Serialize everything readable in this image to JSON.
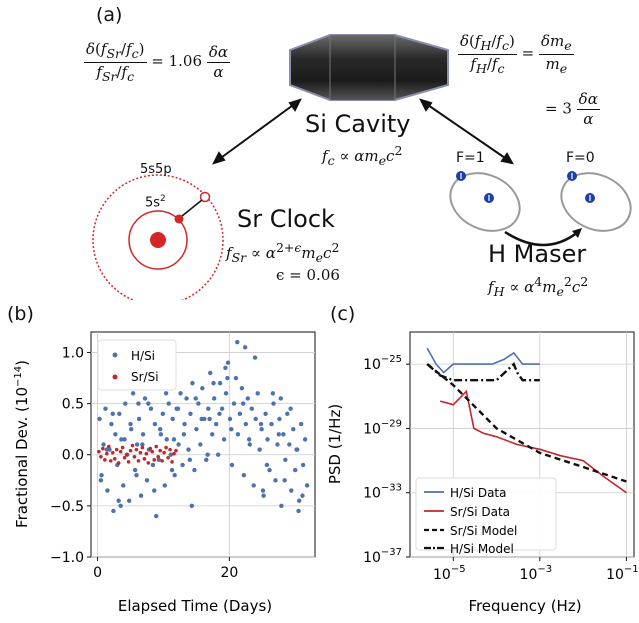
{
  "panels": {
    "a": "(a)",
    "b": "(b)",
    "c": "(c)"
  },
  "schematic": {
    "cavity_label": "Si Cavity",
    "clock_label": "Sr Clock",
    "maser_label": "H Maser",
    "orbital_outer": "5s5p",
    "orbital_inner": "5s",
    "orbital_inner_sup": "2",
    "hyperfine_left": "F=1",
    "hyperfine_right": "F=0",
    "eq_sr_coef": "= 1.06",
    "eq_h_mid": "=",
    "eq_h_coef": "= 3",
    "epsilon_value": "ϵ = 0.06",
    "colors": {
      "clock_red": "#d62728",
      "atom_blue": "#1f3fa8",
      "cavity": "#2b2b2b"
    }
  },
  "chart_data": [
    {
      "type": "scatter",
      "xlabel": "Elapsed Time (Days)",
      "ylabel": "Fractional Dev. (10",
      "ylabel_sup": "−14",
      "ylabel_end": ")",
      "xlim": [
        -1,
        33
      ],
      "ylim": [
        -1.0,
        1.2
      ],
      "xticks": [
        "0",
        "20"
      ],
      "yticks": [
        "1.0",
        "0.5",
        "0.0",
        "−0.5",
        "−1.0"
      ],
      "ytick_values": [
        1.0,
        0.5,
        0.0,
        -0.5,
        -1.0
      ],
      "xtick_values": [
        0,
        20
      ],
      "grid": true,
      "legend": "top-left",
      "series": [
        {
          "name": "H/Si",
          "color": "#4c72b0",
          "x": [
            0.3,
            0.6,
            0.9,
            1.2,
            1.5,
            1.8,
            2.1,
            2.4,
            2.7,
            3.0,
            3.3,
            3.6,
            3.9,
            4.2,
            4.5,
            4.8,
            5.1,
            5.4,
            5.7,
            6.0,
            6.3,
            6.6,
            6.9,
            7.2,
            7.5,
            7.8,
            8.1,
            8.4,
            8.7,
            9.0,
            9.3,
            9.6,
            9.9,
            10.2,
            10.5,
            10.8,
            11.1,
            11.4,
            11.7,
            12.0,
            12.3,
            12.6,
            12.9,
            13.2,
            13.5,
            13.8,
            14.1,
            14.4,
            14.7,
            15.0,
            15.3,
            15.6,
            15.9,
            16.2,
            16.5,
            16.8,
            17.1,
            17.4,
            17.7,
            18.0,
            18.3,
            18.6,
            18.9,
            19.2,
            19.5,
            19.8,
            20.1,
            20.4,
            20.7,
            21.0,
            21.3,
            21.6,
            21.9,
            22.2,
            22.5,
            22.8,
            23.1,
            23.4,
            23.7,
            24.0,
            24.3,
            24.6,
            24.9,
            25.2,
            25.5,
            25.8,
            26.1,
            26.4,
            26.7,
            27.0,
            27.3,
            27.6,
            27.9,
            28.2,
            28.5,
            28.8,
            29.1,
            29.4,
            29.7,
            30.0,
            30.3,
            30.6,
            30.9,
            31.2,
            31.5,
            31.8,
            0.5,
            1.4,
            2.3,
            3.2,
            4.1,
            5.0,
            5.9,
            6.8,
            7.7,
            8.6,
            9.5,
            10.4,
            11.3,
            12.2,
            13.1,
            14.0,
            14.9,
            15.8,
            16.7,
            17.6,
            18.5,
            19.4,
            20.3,
            21.2,
            22.1,
            23.0,
            23.9,
            24.8,
            25.7,
            26.6,
            27.5,
            28.4,
            29.3,
            30.2,
            31.1,
            1.0,
            3.5,
            6.2,
            8.9,
            11.6,
            14.3,
            17.0,
            19.7,
            22.4,
            25.1,
            27.8,
            30.5
          ],
          "y": [
            0.35,
            -0.2,
            0.1,
            0.45,
            -0.35,
            0.05,
            0.3,
            -0.55,
            0.2,
            -0.1,
            0.4,
            0.15,
            -0.3,
            0.5,
            0.0,
            -0.45,
            0.25,
            0.6,
            -0.15,
            0.1,
            0.35,
            -0.4,
            0.2,
            0.55,
            -0.25,
            0.05,
            0.45,
            -0.1,
            0.3,
            0.65,
            -0.05,
            0.2,
            0.4,
            -0.3,
            0.15,
            0.5,
            0.0,
            0.35,
            -0.2,
            0.45,
            0.1,
            0.6,
            -0.1,
            0.3,
            0.55,
            0.05,
            0.4,
            0.7,
            -0.15,
            0.25,
            0.5,
            0.1,
            0.65,
            0.35,
            -0.05,
            0.45,
            0.8,
            0.2,
            0.55,
            0.3,
            0.0,
            0.7,
            0.45,
            0.15,
            0.6,
            0.9,
            0.35,
            -0.1,
            0.5,
            0.75,
            0.2,
            0.4,
            0.65,
            -0.2,
            0.3,
            0.55,
            0.1,
            0.45,
            -0.3,
            0.35,
            0.6,
            0.05,
            0.25,
            -0.4,
            0.4,
            0.15,
            -0.15,
            0.3,
            0.5,
            -0.25,
            0.1,
            0.35,
            -0.5,
            0.2,
            -0.05,
            0.4,
            0.1,
            -0.35,
            0.25,
            -0.15,
            0.05,
            -0.45,
            0.3,
            -0.1,
            0.15,
            -0.3,
            -0.25,
            0.05,
            0.4,
            -0.45,
            0.15,
            0.3,
            -0.2,
            0.1,
            0.5,
            -0.35,
            0.25,
            0.6,
            -0.15,
            0.45,
            0.2,
            -0.05,
            0.55,
            0.35,
            0.0,
            0.7,
            0.4,
            0.85,
            0.25,
            1.1,
            0.5,
            0.15,
            0.95,
            0.3,
            -0.1,
            0.6,
            0.2,
            -0.25,
            0.45,
            0.05,
            -0.4,
            0.9,
            -0.5,
            0.5,
            -0.6,
            0.15,
            -0.5,
            0.35,
            0.75,
            1.05,
            -0.35,
            0.55,
            -0.55
          ]
        },
        {
          "name": "Sr/Si",
          "color": "#c0282d",
          "x": [
            0.2,
            0.5,
            0.8,
            1.1,
            1.4,
            1.7,
            2.0,
            2.3,
            2.6,
            2.9,
            3.2,
            3.5,
            3.8,
            4.1,
            4.4,
            4.7,
            5.0,
            5.3,
            5.6,
            5.9,
            6.2,
            6.5,
            6.8,
            7.1,
            7.4,
            7.7,
            8.0,
            8.3,
            8.6,
            8.9,
            9.2,
            9.5,
            9.8,
            10.1,
            10.4,
            10.7,
            11.0,
            11.3,
            11.6,
            11.9
          ],
          "y": [
            0.03,
            -0.02,
            0.06,
            -0.05,
            0.01,
            0.08,
            -0.06,
            0.02,
            -0.04,
            0.05,
            -0.08,
            0.03,
            0.07,
            -0.03,
            0.0,
            -0.07,
            0.04,
            0.09,
            -0.02,
            0.05,
            -0.06,
            0.02,
            0.07,
            -0.04,
            0.01,
            -0.08,
            0.06,
            0.03,
            -0.05,
            0.08,
            -0.02,
            0.04,
            -0.06,
            0.02,
            0.07,
            -0.03,
            0.05,
            -0.07,
            0.01,
            0.04
          ]
        }
      ]
    },
    {
      "type": "line",
      "xlabel": "Frequency (Hz)",
      "ylabel": "PSD (1/Hz)",
      "xscale": "log",
      "yscale": "log",
      "xlim": [
        1e-06,
        0.15
      ],
      "ylim": [
        1e-37,
        1e-23
      ],
      "xticks": [
        "10",
        "10",
        "10"
      ],
      "xtick_sups": [
        "−5",
        "−3",
        "−1"
      ],
      "xtick_values": [
        1e-05,
        0.001,
        0.1
      ],
      "yticks": [
        "10",
        "10",
        "10",
        "10"
      ],
      "ytick_sups": [
        "−25",
        "−29",
        "−33",
        "−37"
      ],
      "ytick_values": [
        1e-25,
        1e-29,
        1e-33,
        1e-37
      ],
      "grid": true,
      "legend": "bottom-left",
      "series": [
        {
          "name": "H/Si Data",
          "color": "#4c72b0",
          "style": "solid",
          "x": [
            2.5e-06,
            4e-06,
            6e-06,
            1e-05,
            2e-05,
            4e-05,
            8e-05,
            0.00015,
            0.00025,
            0.0004,
            0.0006,
            0.001
          ],
          "y": [
            1e-24,
            1e-25,
            3e-26,
            1e-25,
            1e-25,
            1e-25,
            1e-25,
            2e-25,
            5e-25,
            1e-25,
            1e-25,
            1e-25
          ]
        },
        {
          "name": "Sr/Si Data",
          "color": "#c0282d",
          "style": "solid",
          "x": [
            5e-06,
            1e-05,
            2e-05,
            3e-05,
            5e-05,
            0.0001,
            0.0003,
            0.001,
            0.003,
            0.01,
            0.03,
            0.1
          ],
          "y": [
            5e-28,
            3e-28,
            2e-27,
            1e-29,
            5e-30,
            3e-30,
            1e-30,
            5e-31,
            2e-31,
            1e-31,
            1e-32,
            1e-33
          ]
        },
        {
          "name": "Sr/Si Model",
          "color": "#111111",
          "style": "dashed",
          "x": [
            2.5e-06,
            1e-05,
            0.0001,
            0.001,
            0.01,
            0.1
          ],
          "y": [
            1e-25,
            5e-27,
            1e-29,
            3e-31,
            4e-32,
            5e-33
          ]
        },
        {
          "name": "H/Si Model",
          "color": "#111111",
          "style": "dashdot",
          "x": [
            2.5e-06,
            5e-06,
            1e-05,
            0.0001,
            0.00025,
            0.0003,
            0.0004,
            0.001
          ],
          "y": [
            1e-25,
            2e-26,
            1e-26,
            1e-26,
            1e-25,
            3e-26,
            1e-26,
            1e-26
          ]
        }
      ]
    }
  ]
}
